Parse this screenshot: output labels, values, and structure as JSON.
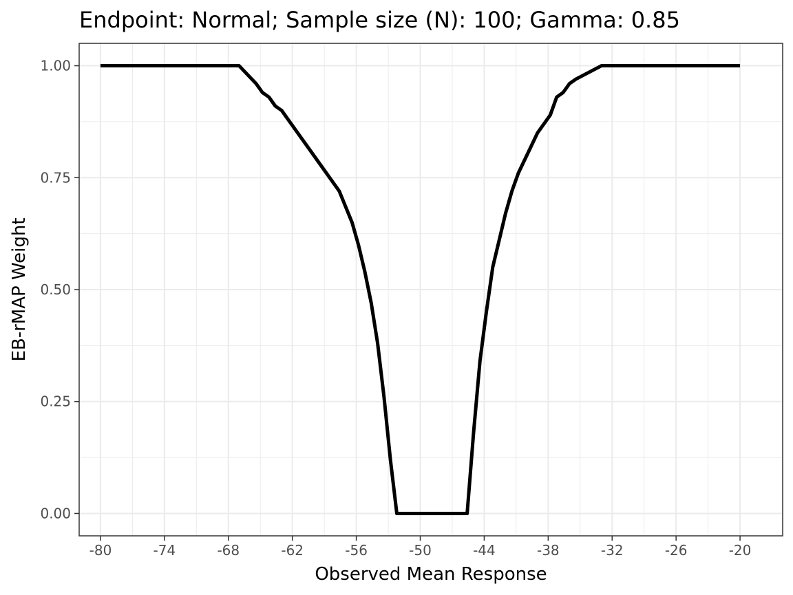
{
  "chart_data": {
    "type": "line",
    "title": "Endpoint: Normal; Sample size (N): 100; Gamma: 0.85",
    "xlabel": "Observed Mean Response",
    "ylabel": "EB-rMAP Weight",
    "xlim": [
      -82.0,
      -16.0
    ],
    "ylim": [
      -0.05,
      1.05
    ],
    "x_ticks": [
      -80,
      -74,
      -68,
      -62,
      -56,
      -50,
      -44,
      -38,
      -32,
      -26,
      -20
    ],
    "y_ticks": [
      0.0,
      0.25,
      0.5,
      0.75,
      1.0
    ],
    "y_tick_labels": [
      "0.00",
      "0.25",
      "0.50",
      "0.75",
      "1.00"
    ],
    "grid": true,
    "line_color": "#000000",
    "series": [
      {
        "x": [
          -80,
          -67,
          -65.4,
          -64.8,
          -64.2,
          -63.6,
          -63.0,
          -62.4,
          -61.8,
          -60.6,
          -59.4,
          -57.6,
          -56.4,
          -55.8,
          -55.2,
          -54.6,
          -54.0,
          -53.4,
          -52.8,
          -52.2,
          -51.6,
          -45.6,
          -45.0,
          -44.4,
          -43.8,
          -43.2,
          -42.6,
          -42.0,
          -41.4,
          -40.8,
          -40.2,
          -39.0,
          -37.8,
          -37.2,
          -36.6,
          -36.0,
          -35.4,
          -33.0,
          -20
        ],
        "y": [
          1.0,
          1.0,
          0.96,
          0.94,
          0.93,
          0.91,
          0.9,
          0.88,
          0.86,
          0.82,
          0.78,
          0.72,
          0.65,
          0.6,
          0.54,
          0.47,
          0.38,
          0.26,
          0.12,
          0.0,
          0.0,
          0.0,
          0.18,
          0.34,
          0.45,
          0.55,
          0.61,
          0.67,
          0.72,
          0.76,
          0.79,
          0.85,
          0.89,
          0.93,
          0.94,
          0.96,
          0.97,
          1.0,
          1.0
        ]
      }
    ]
  }
}
